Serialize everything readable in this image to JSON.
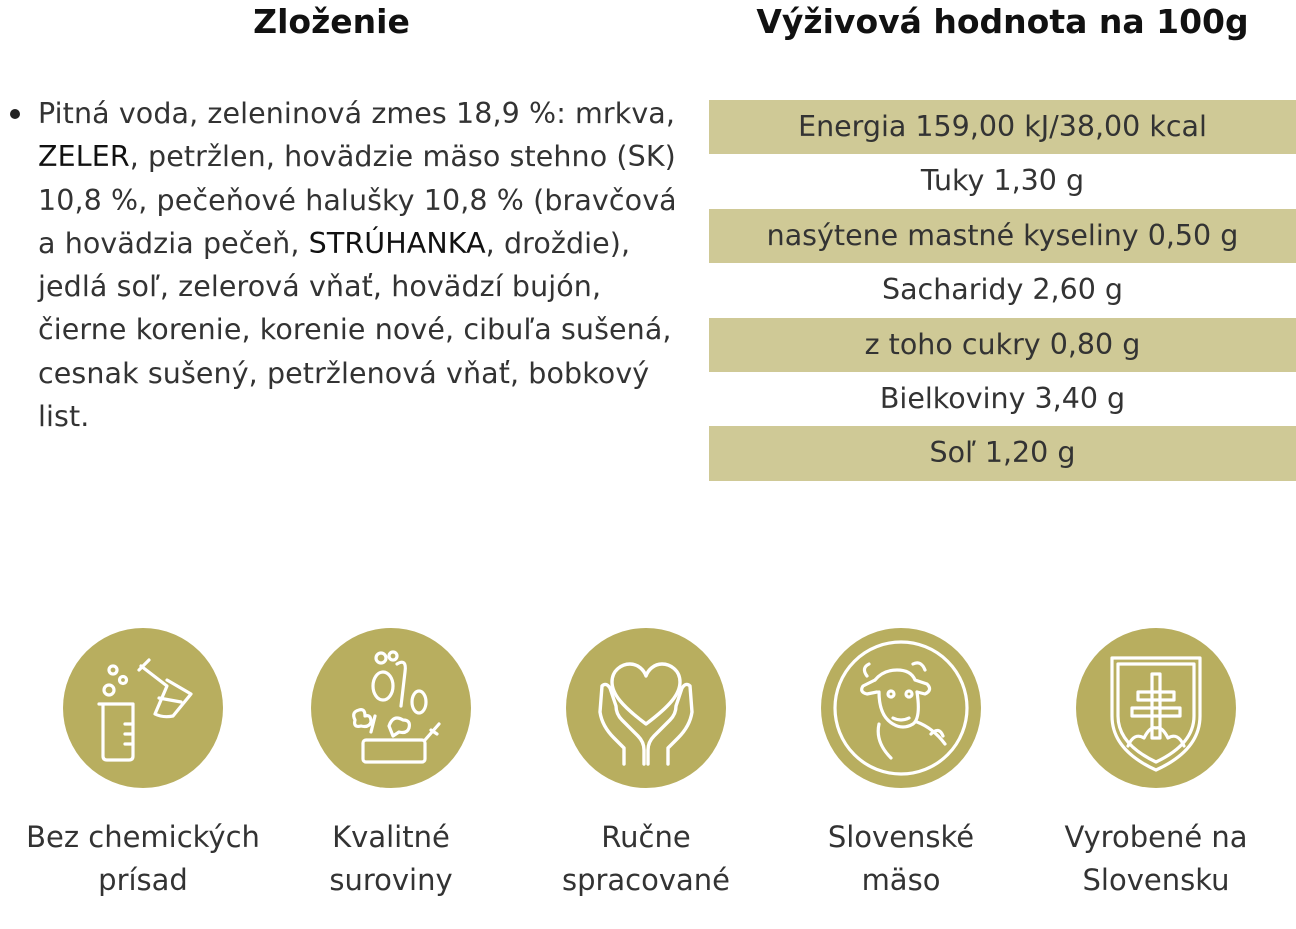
{
  "headings": {
    "ingredients": "Zloženie",
    "nutrition": "Výživová hodnota na 100g"
  },
  "ingredients": {
    "parts": [
      "Pitná voda, zeleninová zmes 18,9 %: mrkva, ",
      "ZELER",
      ", petržlen, hovädzie mäso stehno (SK) 10,8 %, pečeňové halušky 10,8 % (bravčová a hovädzia pečeň, ",
      "STRÚHANKA",
      ", droždie), jedlá soľ, zelerová vňať, hovädzí bujón, čierne korenie, korenie nové, cibuľa sušená, cesnak sušený, petržlenová vňať, bobkový list."
    ]
  },
  "nutrition_rows": [
    "Energia 159,00 kJ/38,00 kcal",
    "Tuky 1,30 g",
    "nasýtene mastné kyseliny 0,50 g",
    "Sacharidy 2,60 g",
    "z toho cukry 0,80 g",
    "Bielkoviny 3,40 g",
    "Soľ 1,20 g"
  ],
  "badges": [
    {
      "icon": "lab-flask-icon",
      "line1": "Bez chemických",
      "line2": "prísad"
    },
    {
      "icon": "vegetables-pot-icon",
      "line1": "Kvalitné",
      "line2": "suroviny"
    },
    {
      "icon": "heart-hands-icon",
      "line1": "Ručne",
      "line2": "spracované"
    },
    {
      "icon": "cow-icon",
      "line1": "Slovenské",
      "line2": "mäso"
    },
    {
      "icon": "slovak-emblem-icon",
      "line1": "Vyrobené na",
      "line2": "Slovensku"
    }
  ],
  "colors": {
    "row_highlight": "#cfc996",
    "badge_circle": "#b8ae5f",
    "icon_stroke": "#ffffff"
  }
}
